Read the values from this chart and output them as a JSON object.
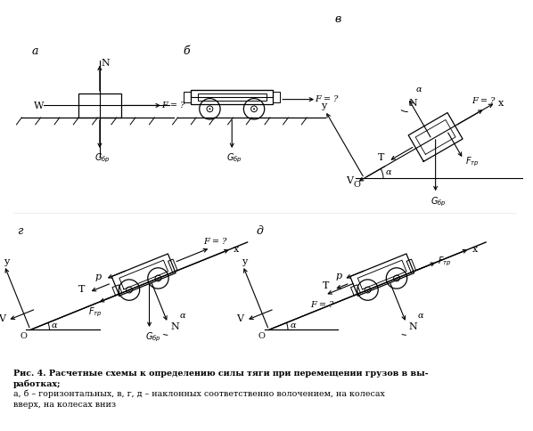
{
  "title_line1": "Рис. 4. Расчетные схемы к определению силы тяги при перемещении грузов в вы-",
  "title_line2": "работках;",
  "title_line3": "а, б – горизонтальных, в, г, д – наклонных соответственно волочением, на колесах",
  "title_line4": "вверх, на колесах вниз",
  "bg_color": "#ffffff",
  "line_color": "#000000"
}
